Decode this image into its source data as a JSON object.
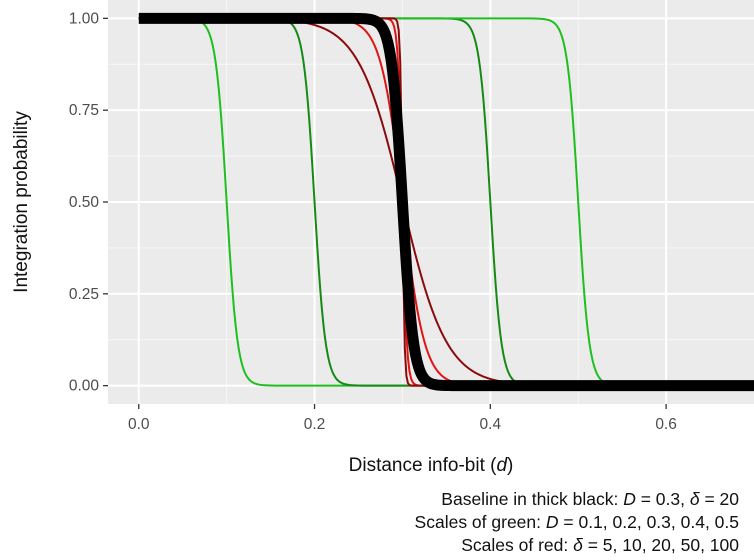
{
  "chart_data": {
    "type": "line",
    "xlabel": "Distance info-bit (",
    "xlabel_var": "d",
    "xlabel_close": ")",
    "ylabel": "Integration probability",
    "xlim": [
      -0.035,
      0.7
    ],
    "ylim": [
      -0.05,
      1.05
    ],
    "x_ticks": [
      0.0,
      0.2,
      0.4,
      0.6
    ],
    "x_tick_labels": [
      "0.0",
      "0.2",
      "0.4",
      "0.6"
    ],
    "y_ticks": [
      0.0,
      0.25,
      0.5,
      0.75,
      1.0
    ],
    "y_tick_labels": [
      "0.00",
      "0.25",
      "0.50",
      "0.75",
      "1.00"
    ],
    "grid": true,
    "curve_model": "logistic",
    "x_range": [
      0.0,
      0.7
    ],
    "series": [
      {
        "D": 0.1,
        "delta": 20,
        "color": "#1fbf1f",
        "width": 2
      },
      {
        "D": 0.2,
        "delta": 20,
        "color": "#158a15",
        "width": 2
      },
      {
        "D": 0.4,
        "delta": 20,
        "color": "#158a15",
        "width": 2
      },
      {
        "D": 0.5,
        "delta": 20,
        "color": "#1fbf1f",
        "width": 2
      },
      {
        "D": 0.3,
        "delta": 5,
        "color": "#8b0a0a",
        "width": 2
      },
      {
        "D": 0.3,
        "delta": 10,
        "color": "#e01414",
        "width": 2
      },
      {
        "D": 0.3,
        "delta": 50,
        "color": "#e01414",
        "width": 2
      },
      {
        "D": 0.3,
        "delta": 100,
        "color": "#8b0a0a",
        "width": 2
      },
      {
        "D": 0.3,
        "delta": 20,
        "color": "#000000",
        "width": 11
      }
    ],
    "caption_lines": [
      {
        "prefix": "Baseline in thick black: ",
        "var1": "D",
        "mid": " = 0.3, ",
        "var2": "δ",
        "suffix": " = 20"
      },
      {
        "prefix": "Scales of green: ",
        "var1": "D",
        "mid": " = 0.1, 0.2, 0.3, 0.4, 0.5",
        "var2": "",
        "suffix": ""
      },
      {
        "prefix": "Scales of red: ",
        "var1": "",
        "mid": "",
        "var2": "δ",
        "suffix": " = 5, 10, 20, 50, 100"
      }
    ]
  }
}
